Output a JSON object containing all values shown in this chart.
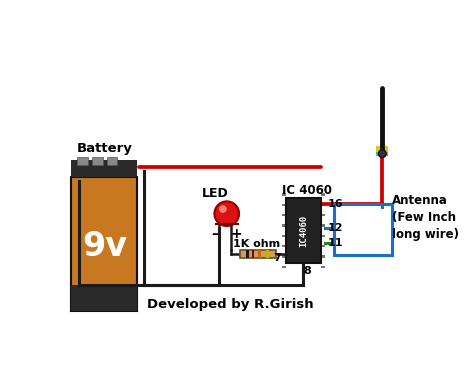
{
  "background_color": "#ffffff",
  "battery_label": "Battery",
  "battery_9v": "9v",
  "led_label": "LED",
  "ic_label": "IC 4060",
  "ic_text": "IC4060",
  "resistor_label": "1K ohm",
  "antenna_label": "Antenna\n(Few Inch\nlong wire)",
  "credit": "Developed by R.Girish",
  "pin16": "16",
  "pin12": "12",
  "pin11": "11",
  "pin8": "8",
  "pin7": "7",
  "wire_red": "#cc0000",
  "wire_black": "#1a1a1a",
  "wire_blue": "#1a6fcc",
  "wire_green": "#228822",
  "battery_body_top": "#2a2a2a",
  "battery_body_orange": "#c87820",
  "battery_body_dark": "#333333",
  "led_body": "#dd2222",
  "led_highlight": "#ff8888",
  "resistor_body": "#c8a060",
  "ic_body": "#2a2a2a",
  "figsize": [
    4.74,
    3.82
  ],
  "dpi": 100
}
